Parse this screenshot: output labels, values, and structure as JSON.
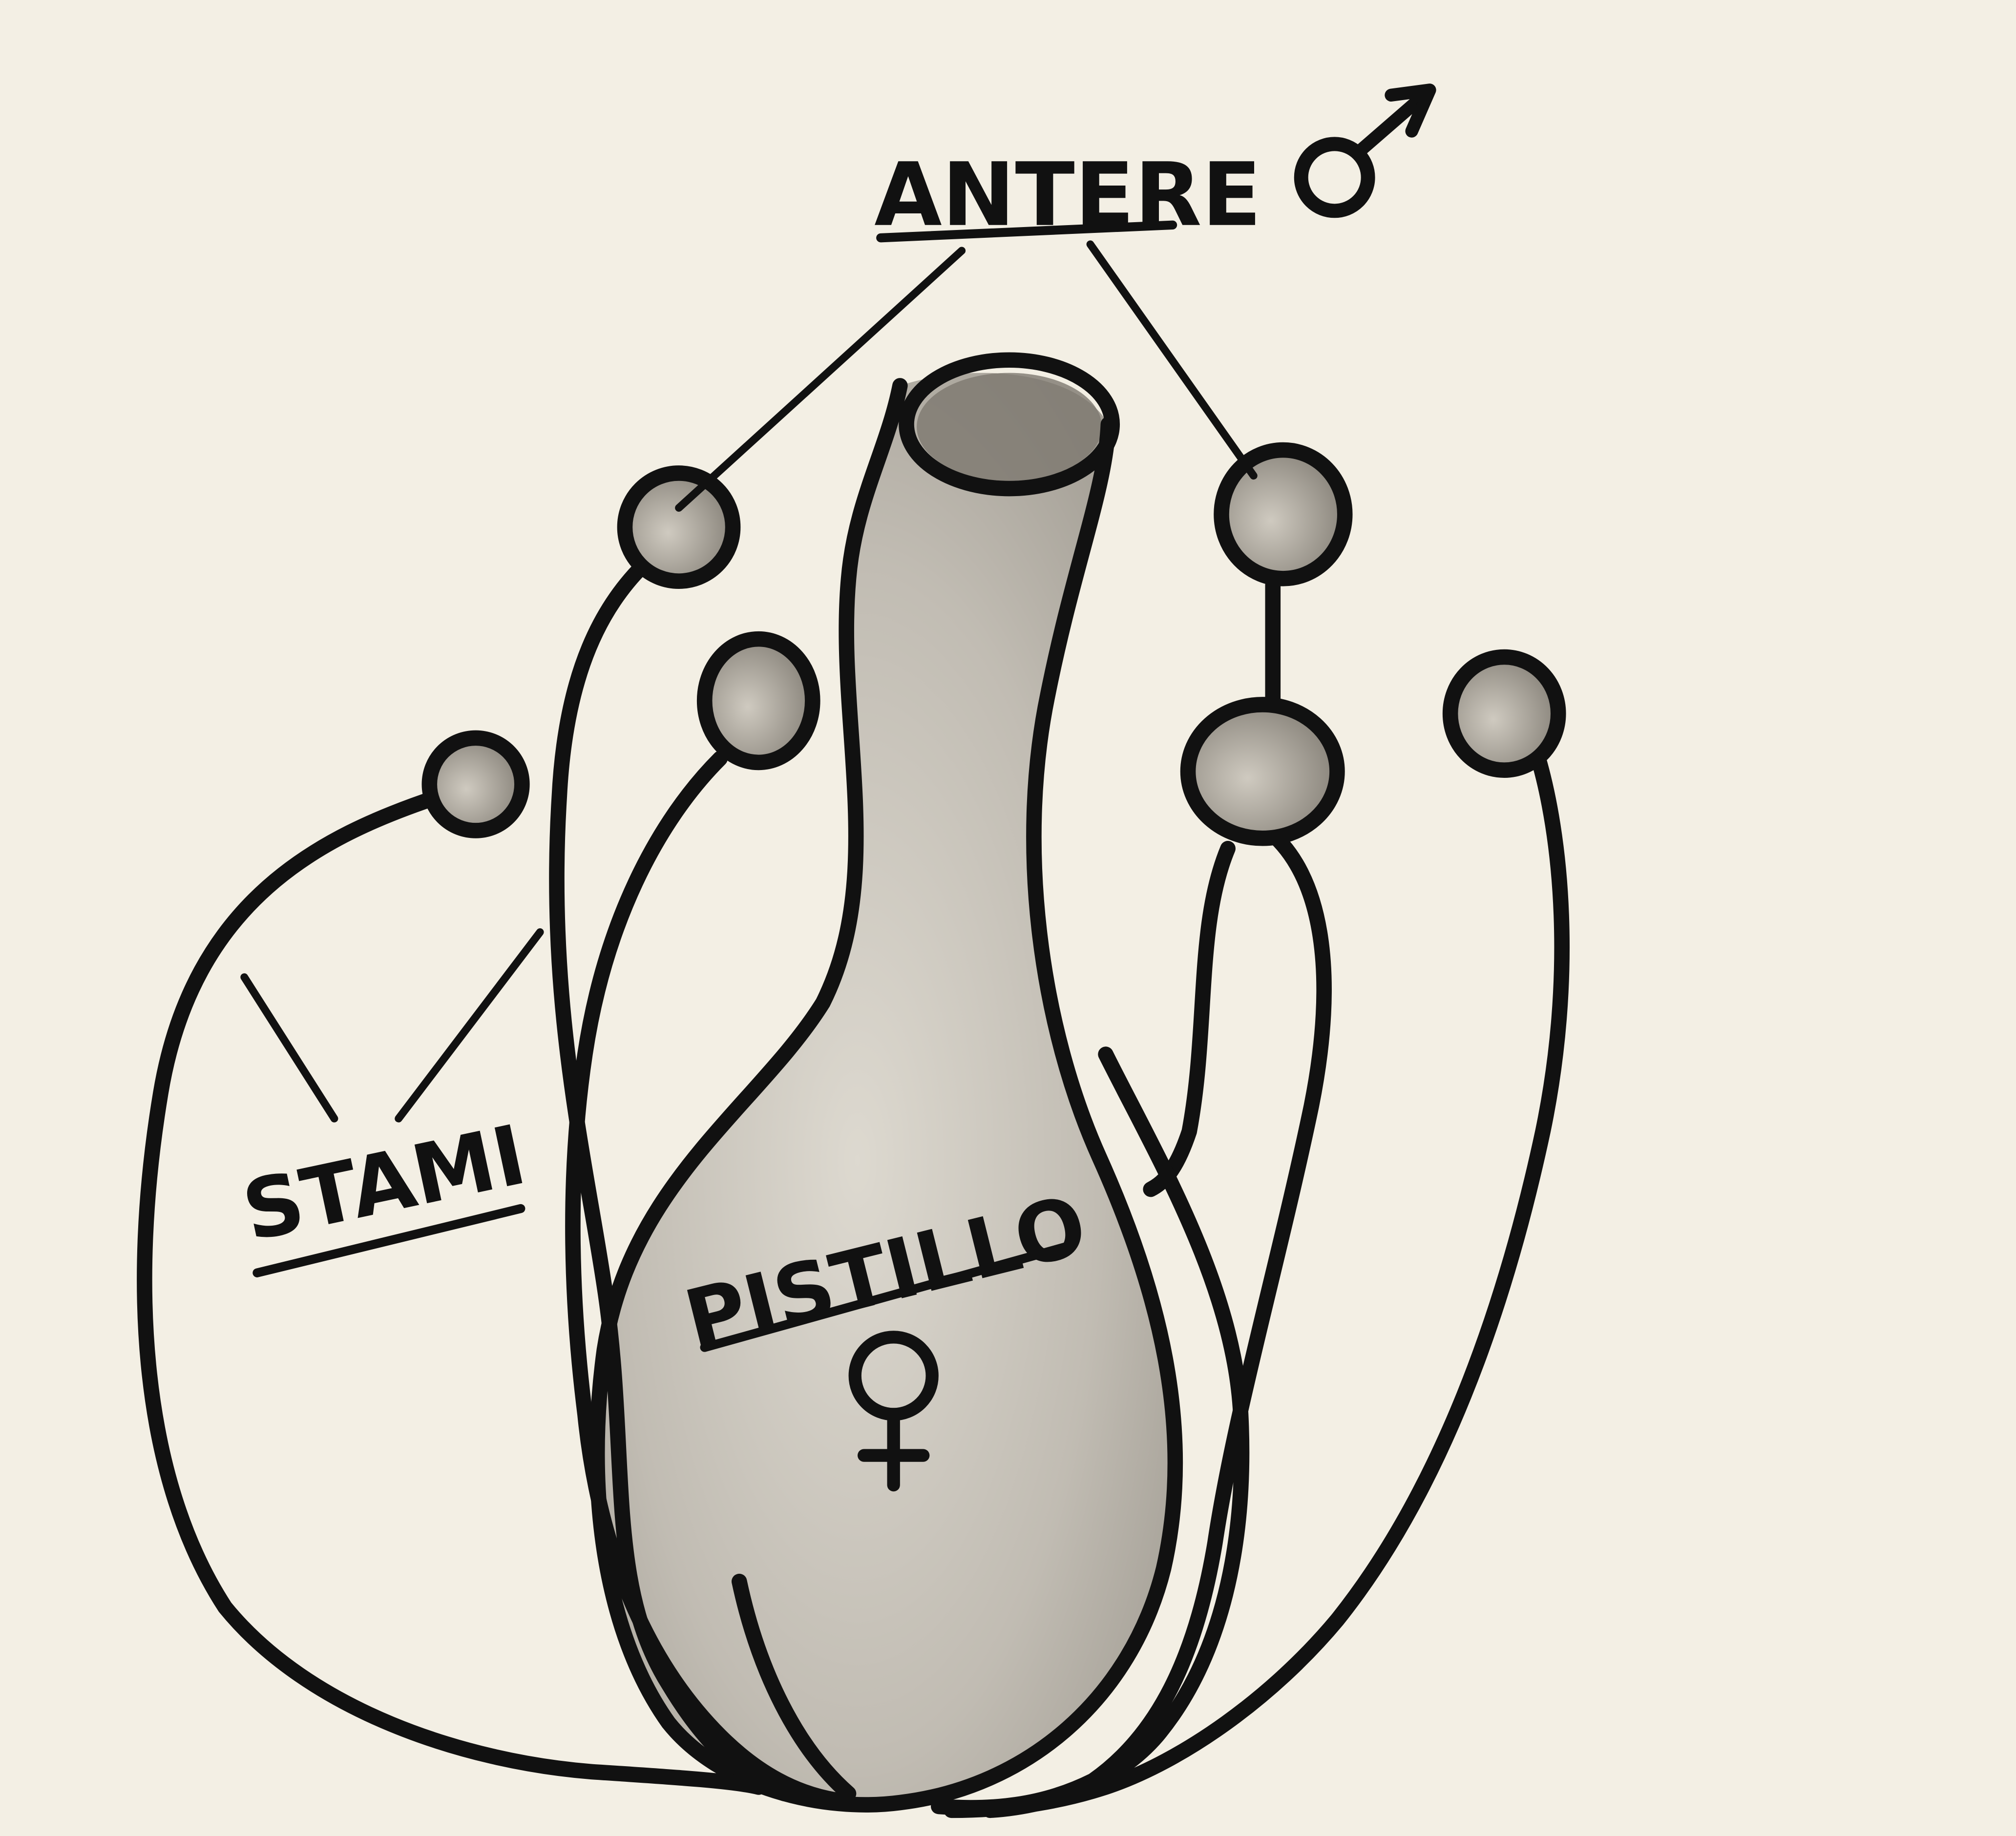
{
  "labels": {
    "anthers": "ANTERE",
    "stamens": "STAMI",
    "pistil": "PISTILLO"
  },
  "symbols": {
    "male": "male-symbol-icon",
    "female": "female-symbol-icon"
  },
  "colors": {
    "paper": "#f3efe4",
    "ink": "#111111",
    "pencil_shading": "#9a958c"
  }
}
